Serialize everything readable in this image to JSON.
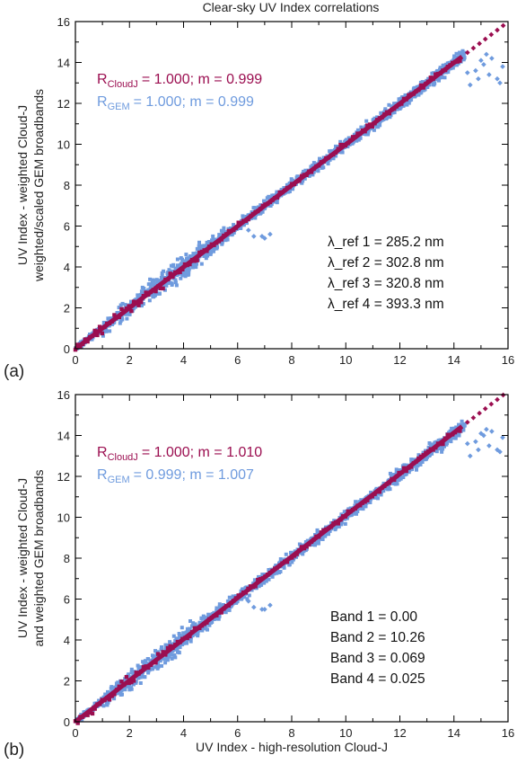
{
  "title": "Clear-sky UV Index correlations",
  "colors": {
    "gem": "#6f9bde",
    "cloudj": "#9b0e50",
    "axis": "#000000"
  },
  "chart_data": [
    {
      "type": "scatter",
      "panel_label": "(a)",
      "xlabel": "",
      "ylabel": [
        "UV Index - weighted Cloud-J",
        "weighted/scaled GEM broadbands"
      ],
      "xlim": [
        0,
        16
      ],
      "ylim": [
        0,
        16
      ],
      "ticks": [
        0,
        2,
        4,
        6,
        8,
        10,
        12,
        14,
        16
      ],
      "grid": false,
      "series": [
        {
          "name": "R_CloudJ",
          "stat_text": "= 1.000;  m = 0.999",
          "r": 1.0,
          "m": 0.999,
          "x_range": [
            0,
            16
          ]
        },
        {
          "name": "R_GEM",
          "stat_text": "= 1.000;  m = 0.999",
          "r": 1.0,
          "m": 0.999,
          "x_range": [
            0,
            14.4
          ]
        }
      ],
      "annotations": [
        "λ_ref 1 = 285.2 nm",
        "λ_ref 2 = 302.8 nm",
        "λ_ref 3 = 320.8 nm",
        "λ_ref 4 = 393.3 nm"
      ],
      "outliers": [
        [
          6.4,
          5.8
        ],
        [
          6.6,
          5.5
        ],
        [
          6.9,
          5.5
        ],
        [
          7.2,
          5.6
        ],
        [
          7.0,
          5.4
        ],
        [
          14.5,
          13.5
        ],
        [
          14.8,
          13.6
        ],
        [
          15.0,
          14.1
        ],
        [
          15.3,
          13.4
        ],
        [
          15.6,
          13.2
        ],
        [
          15.8,
          13.8
        ],
        [
          15.1,
          13.9
        ],
        [
          14.6,
          12.9
        ],
        [
          15.4,
          14.2
        ],
        [
          15.7,
          13.0
        ],
        [
          15.2,
          14.4
        ],
        [
          14.9,
          13.2
        ]
      ]
    },
    {
      "type": "scatter",
      "panel_label": "(b)",
      "xlabel": "UV Index - high-resolution Cloud-J",
      "ylabel": [
        "UV Index - weighted Cloud-J",
        "and weighted GEM broadbands"
      ],
      "xlim": [
        0,
        16
      ],
      "ylim": [
        0,
        16
      ],
      "ticks": [
        0,
        2,
        4,
        6,
        8,
        10,
        12,
        14,
        16
      ],
      "grid": false,
      "series": [
        {
          "name": "R_CloudJ",
          "stat_text": "= 1.000;  m = 1.010",
          "r": 1.0,
          "m": 1.01,
          "x_range": [
            0,
            16
          ]
        },
        {
          "name": "R_GEM",
          "stat_text": "= 0.999;  m = 1.007",
          "r": 0.999,
          "m": 1.007,
          "x_range": [
            0,
            14.4
          ]
        }
      ],
      "annotations": [
        "Band 1 =    0.00",
        "Band 2 =  10.26",
        "Band 3 =  0.069",
        "Band 4 =  0.025"
      ],
      "outliers": [
        [
          6.4,
          5.9
        ],
        [
          6.6,
          5.6
        ],
        [
          6.9,
          5.5
        ],
        [
          7.2,
          5.7
        ],
        [
          7.0,
          5.5
        ],
        [
          14.5,
          13.6
        ],
        [
          14.8,
          13.7
        ],
        [
          15.0,
          14.1
        ],
        [
          15.3,
          13.5
        ],
        [
          15.6,
          13.3
        ],
        [
          15.8,
          13.9
        ],
        [
          15.1,
          14.0
        ],
        [
          14.6,
          13.0
        ],
        [
          15.4,
          14.2
        ],
        [
          15.7,
          13.2
        ],
        [
          15.2,
          14.3
        ],
        [
          14.9,
          13.3
        ]
      ]
    }
  ]
}
